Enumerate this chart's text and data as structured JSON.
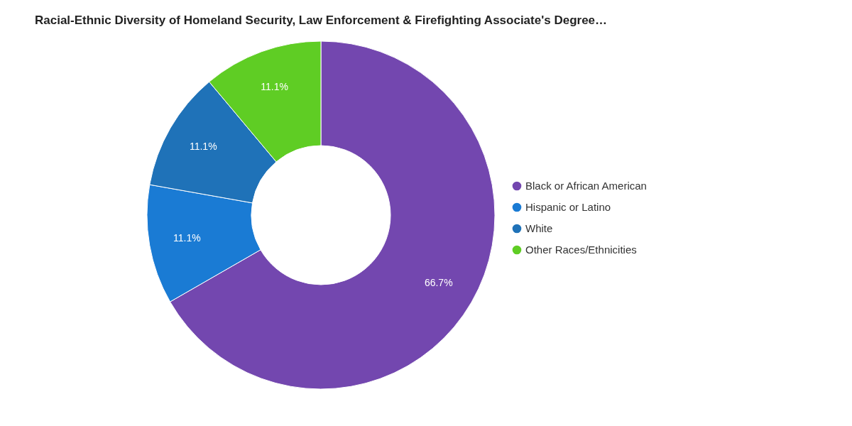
{
  "chart_data": {
    "type": "donut",
    "title": "Racial-Ethnic Diversity of Homeland Security, Law Enforcement & Firefighting Associate's Degree…",
    "categories": [
      "Black or African American",
      "Hispanic or Latino",
      "White",
      "Other Races/Ethnicities"
    ],
    "values": [
      66.7,
      11.1,
      11.1,
      11.1
    ],
    "colors": [
      "#7347af",
      "#1a7bd4",
      "#1f72b8",
      "#5fcd24"
    ],
    "value_labels": [
      "66.7%",
      "11.1%",
      "11.1%",
      "11.1%"
    ],
    "legend": "right"
  }
}
